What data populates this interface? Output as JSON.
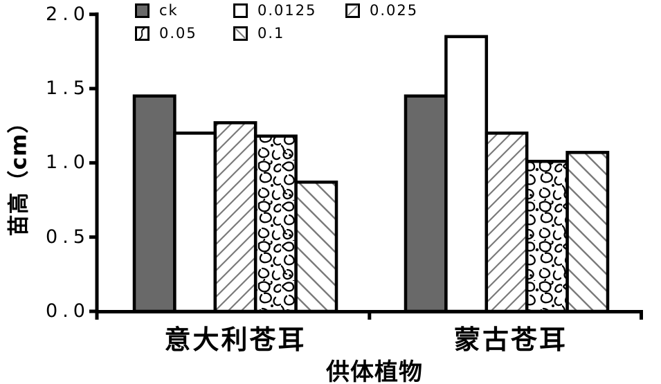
{
  "chart_data": {
    "type": "bar",
    "title": "",
    "xlabel": "供体植物",
    "ylabel": "苗高（cm）",
    "ylim": [
      0.0,
      2.0
    ],
    "yticks": [
      0.0,
      0.5,
      1.0,
      1.5,
      2.0
    ],
    "ytick_labels": [
      "0.0",
      "0.5",
      "1.0",
      "1.5",
      "2.0"
    ],
    "categories": [
      "意大利苍耳",
      "蒙古苍耳"
    ],
    "grid": false,
    "legend_position": "top-inside",
    "series": [
      {
        "name": "ck",
        "pattern": "solid-gray",
        "values": [
          1.45,
          1.45
        ]
      },
      {
        "name": "0.0125",
        "pattern": "white",
        "values": [
          1.2,
          1.85
        ]
      },
      {
        "name": "0.025",
        "pattern": "diagonal-forward",
        "values": [
          1.27,
          1.2
        ]
      },
      {
        "name": "0.05",
        "pattern": "vermiculate",
        "values": [
          1.18,
          1.01
        ]
      },
      {
        "name": "0.1",
        "pattern": "diagonal-backward",
        "values": [
          0.87,
          1.07
        ]
      }
    ],
    "colors": {
      "bar_border": "#000000",
      "ck_fill": "#696969",
      "hatch_line": "#7a7a7a",
      "axis": "#000000",
      "background": "#ffffff"
    }
  }
}
